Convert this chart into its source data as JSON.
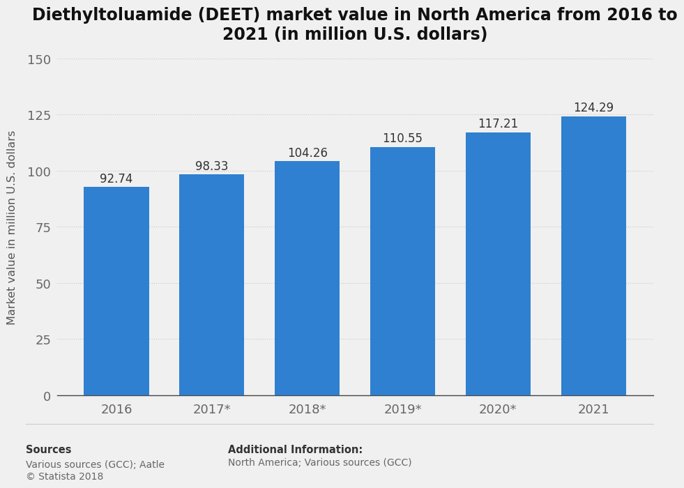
{
  "title": "Diethyltoluamide (DEET) market value in North America from 2016 to\n2021 (in million U.S. dollars)",
  "categories": [
    "2016",
    "2017*",
    "2018*",
    "2019*",
    "2020*",
    "2021"
  ],
  "values": [
    92.74,
    98.33,
    104.26,
    110.55,
    117.21,
    124.29
  ],
  "bar_color": "#2f80d0",
  "background_color": "#f0f0f0",
  "plot_background_color": "#f0f0f0",
  "ylabel": "Market value in million U.S. dollars",
  "ylim": [
    0,
    150
  ],
  "yticks": [
    0,
    25,
    50,
    75,
    100,
    125,
    150
  ],
  "grid_color": "#c8c8c8",
  "title_fontsize": 17,
  "label_fontsize": 11.5,
  "tick_fontsize": 13,
  "bar_label_fontsize": 12,
  "sources_label": "Sources",
  "sources_body": "Various sources (GCC); Aatle\n© Statista 2018",
  "additional_label": "Additional Information:",
  "additional_body": "North America; Various sources (GCC)"
}
